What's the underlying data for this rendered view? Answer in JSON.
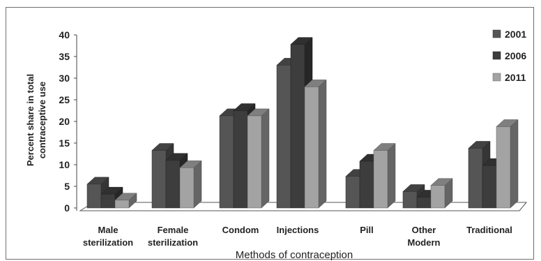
{
  "chart_data": {
    "type": "bar",
    "categories": [
      "Male sterilization",
      "Female sterilization",
      "Condom",
      "Injections",
      "Pill",
      "Other Modern",
      "Traditional"
    ],
    "category_lines": [
      [
        "Male",
        "sterilization"
      ],
      [
        "Female",
        "sterilization"
      ],
      [
        "Condom"
      ],
      [
        "Injections"
      ],
      [
        "Pill"
      ],
      [
        "Other",
        "Modern"
      ],
      [
        "Traditional"
      ]
    ],
    "series": [
      {
        "name": "2001",
        "values": [
          5.5,
          13.3,
          21.3,
          33.0,
          7.3,
          3.8,
          13.8
        ],
        "color": "#555555"
      },
      {
        "name": "2006",
        "values": [
          3.2,
          11.0,
          22.5,
          37.8,
          10.8,
          2.5,
          9.8
        ],
        "color": "#3d3d3d"
      },
      {
        "name": "2011",
        "values": [
          1.8,
          9.3,
          21.3,
          28.0,
          13.3,
          5.2,
          18.8
        ],
        "color": "#a3a3a3"
      }
    ],
    "y_ticks": [
      "0",
      "5",
      "10",
      "15",
      "20",
      "25",
      "30",
      "35",
      "40"
    ],
    "ylim": [
      0,
      40
    ],
    "xlabel": "Methods of contraception",
    "ylabel_lines": [
      "Percent share in total",
      "contraceptive use"
    ],
    "legend_position": "top-right",
    "style": "3d-clustered-column",
    "grid": false
  }
}
